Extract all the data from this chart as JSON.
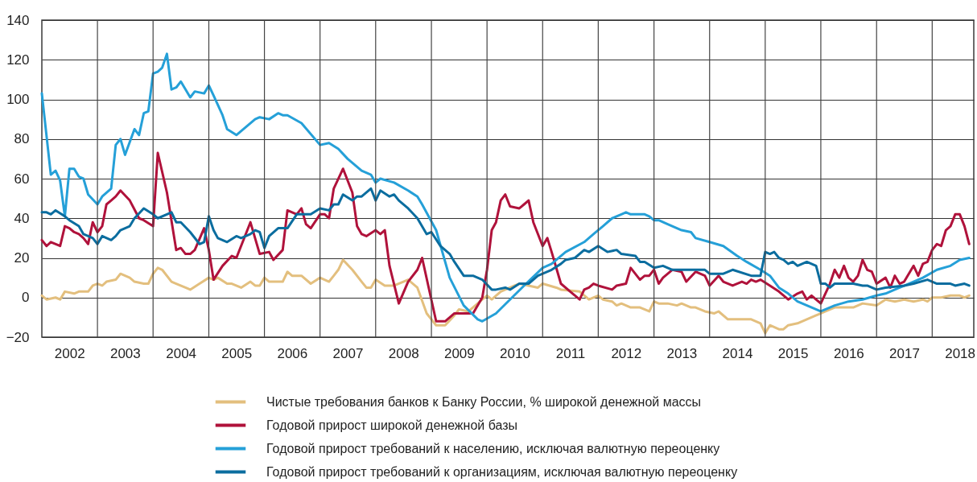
{
  "chart_data": {
    "type": "line",
    "xlim": [
      "2002-01",
      "2018-10"
    ],
    "ylim": [
      -20,
      140
    ],
    "xticks": [
      {
        "value": "2002-07",
        "label": "2002"
      },
      {
        "value": "2003-01",
        "label": null
      },
      {
        "value": "2003-07",
        "label": "2003"
      },
      {
        "value": "2004-01",
        "label": null
      },
      {
        "value": "2004-07",
        "label": "2004"
      },
      {
        "value": "2005-01",
        "label": null
      },
      {
        "value": "2005-07",
        "label": "2005"
      },
      {
        "value": "2006-01",
        "label": null
      },
      {
        "value": "2006-07",
        "label": "2006"
      },
      {
        "value": "2007-01",
        "label": null
      },
      {
        "value": "2007-07",
        "label": "2007"
      },
      {
        "value": "2008-01",
        "label": null
      },
      {
        "value": "2008-07",
        "label": "2008"
      },
      {
        "value": "2009-01",
        "label": null
      },
      {
        "value": "2009-07",
        "label": "2009"
      },
      {
        "value": "2010-01",
        "label": null
      },
      {
        "value": "2010-07",
        "label": "2010"
      },
      {
        "value": "2011-01",
        "label": null
      },
      {
        "value": "2011-07",
        "label": "2011"
      },
      {
        "value": "2012-01",
        "label": null
      },
      {
        "value": "2012-07",
        "label": "2012"
      },
      {
        "value": "2013-01",
        "label": null
      },
      {
        "value": "2013-07",
        "label": "2013"
      },
      {
        "value": "2014-01",
        "label": null
      },
      {
        "value": "2014-07",
        "label": "2014"
      },
      {
        "value": "2015-01",
        "label": null
      },
      {
        "value": "2015-07",
        "label": "2015"
      },
      {
        "value": "2016-01",
        "label": null
      },
      {
        "value": "2016-07",
        "label": "2016"
      },
      {
        "value": "2017-01",
        "label": null
      },
      {
        "value": "2017-07",
        "label": "2017"
      },
      {
        "value": "2018-01",
        "label": null
      },
      {
        "value": "2018-07",
        "label": "2018"
      }
    ],
    "yticks": [
      -20,
      0,
      20,
      40,
      60,
      80,
      100,
      120,
      140
    ],
    "grid": true,
    "legend": "bottom",
    "line_style": "solid",
    "series": [
      {
        "name": "Чистые требования банков к Банку России, % широкой денежной массы",
        "color": "#e3bf7e",
        "x": [
          "2002-01",
          "2002-02",
          "2002-04",
          "2002-05",
          "2002-06",
          "2002-08",
          "2002-09",
          "2002-11",
          "2002-12",
          "2003-01",
          "2003-02",
          "2003-03",
          "2003-05",
          "2003-06",
          "2003-08",
          "2003-09",
          "2003-11",
          "2003-12",
          "2004-01",
          "2004-02",
          "2004-03",
          "2004-05",
          "2004-06",
          "2004-08",
          "2004-09",
          "2004-11",
          "2005-01",
          "2005-02",
          "2005-03",
          "2005-05",
          "2005-06",
          "2005-08",
          "2005-10",
          "2005-11",
          "2005-12",
          "2006-01",
          "2006-02",
          "2006-05",
          "2006-06",
          "2006-07",
          "2006-09",
          "2006-11",
          "2007-01",
          "2007-03",
          "2007-04",
          "2007-05",
          "2007-06",
          "2007-08",
          "2007-10",
          "2007-11",
          "2007-12",
          "2008-01",
          "2008-03",
          "2008-05",
          "2008-07",
          "2008-08",
          "2008-10",
          "2008-12",
          "2009-02",
          "2009-04",
          "2009-06",
          "2009-07",
          "2009-09",
          "2009-10",
          "2009-12",
          "2010-01",
          "2010-02",
          "2010-04",
          "2010-07",
          "2010-08",
          "2010-10",
          "2010-12",
          "2011-01",
          "2011-04",
          "2011-05",
          "2011-09",
          "2011-11",
          "2012-01",
          "2012-02",
          "2012-04",
          "2012-05",
          "2012-06",
          "2012-08",
          "2012-10",
          "2012-12",
          "2013-01",
          "2013-02",
          "2013-04",
          "2013-06",
          "2013-07",
          "2013-09",
          "2013-10",
          "2013-12",
          "2014-02",
          "2014-03",
          "2014-05",
          "2014-07",
          "2014-09",
          "2014-10",
          "2014-12",
          "2015-01",
          "2015-02",
          "2015-04",
          "2015-05",
          "2015-06",
          "2015-08",
          "2015-10",
          "2015-12",
          "2016-02",
          "2016-04",
          "2016-06",
          "2016-08",
          "2016-10",
          "2017-01",
          "2017-03",
          "2017-05",
          "2017-07",
          "2017-09",
          "2017-11",
          "2017-12",
          "2018-01",
          "2018-03",
          "2018-05",
          "2018-07",
          "2018-08",
          "2018-09"
        ],
        "values": [
          1,
          -1,
          0,
          -1,
          3,
          2,
          3,
          3,
          6,
          7,
          6,
          8,
          9,
          12,
          10,
          8,
          7,
          7,
          12,
          15,
          14,
          8,
          7,
          5,
          4,
          7,
          10,
          9,
          10,
          7,
          7,
          5,
          8,
          6,
          6,
          10,
          8,
          8,
          13,
          11,
          11,
          7,
          10,
          8,
          11,
          14,
          19,
          14,
          8,
          5,
          5,
          9,
          6,
          6,
          8,
          9,
          5,
          -8,
          -14,
          -14,
          -9,
          -6,
          -7,
          -5,
          -1,
          1,
          -1,
          3,
          6,
          7,
          6,
          5,
          7,
          5,
          4,
          3,
          -1,
          1,
          -1,
          -2,
          -4,
          -3,
          -5,
          -5,
          -7,
          -2,
          -3,
          -3,
          -4,
          -3,
          -5,
          -5,
          -7,
          -8,
          -7,
          -11,
          -11,
          -11,
          -11,
          -13,
          -18,
          -14,
          -16,
          -16,
          -14,
          -13,
          -11,
          -9,
          -7,
          -5,
          -5,
          -5,
          -3,
          -4,
          -1,
          -2,
          -1,
          -2,
          -1,
          -2,
          0,
          0,
          1,
          1,
          0,
          1
        ]
      },
      {
        "name": "Годовой прирост широкой денежной базы",
        "color": "#b0123b",
        "x": [
          "2002-01",
          "2002-02",
          "2002-03",
          "2002-05",
          "2002-06",
          "2002-07",
          "2002-08",
          "2002-09",
          "2002-10",
          "2002-11",
          "2002-12",
          "2003-01",
          "2003-02",
          "2003-03",
          "2003-04",
          "2003-05",
          "2003-06",
          "2003-08",
          "2003-10",
          "2003-11",
          "2004-01",
          "2004-02",
          "2004-04",
          "2004-06",
          "2004-07",
          "2004-08",
          "2004-09",
          "2004-10",
          "2004-12",
          "2005-01",
          "2005-02",
          "2005-04",
          "2005-06",
          "2005-07",
          "2005-10",
          "2005-12",
          "2006-02",
          "2006-03",
          "2006-05",
          "2006-06",
          "2006-08",
          "2006-09",
          "2006-10",
          "2006-11",
          "2007-01",
          "2007-02",
          "2007-03",
          "2007-04",
          "2007-06",
          "2007-08",
          "2007-09",
          "2007-10",
          "2007-11",
          "2008-01",
          "2008-02",
          "2008-03",
          "2008-04",
          "2008-06",
          "2008-08",
          "2008-10",
          "2008-11",
          "2009-02",
          "2009-04",
          "2009-06",
          "2009-10",
          "2009-12",
          "2010-01",
          "2010-02",
          "2010-03",
          "2010-04",
          "2010-05",
          "2010-06",
          "2010-08",
          "2010-09",
          "2010-10",
          "2010-11",
          "2011-01",
          "2011-02",
          "2011-03",
          "2011-05",
          "2011-07",
          "2011-09",
          "2011-10",
          "2011-11",
          "2011-12",
          "2012-01",
          "2012-04",
          "2012-05",
          "2012-07",
          "2012-08",
          "2012-10",
          "2012-11",
          "2012-12",
          "2013-01",
          "2013-02",
          "2013-03",
          "2013-05",
          "2013-07",
          "2013-08",
          "2013-10",
          "2013-12",
          "2014-01",
          "2014-03",
          "2014-04",
          "2014-06",
          "2014-08",
          "2014-09",
          "2014-10",
          "2014-11",
          "2014-12",
          "2015-02",
          "2015-04",
          "2015-06",
          "2015-08",
          "2015-09",
          "2015-10",
          "2015-11",
          "2016-01",
          "2016-03",
          "2016-04",
          "2016-05",
          "2016-06",
          "2016-07",
          "2016-08",
          "2016-09",
          "2016-10",
          "2016-11",
          "2016-12",
          "2017-01",
          "2017-03",
          "2017-04",
          "2017-05",
          "2017-06",
          "2017-07",
          "2017-09",
          "2017-10",
          "2017-11",
          "2017-12",
          "2018-01",
          "2018-02",
          "2018-03",
          "2018-04",
          "2018-05",
          "2018-06",
          "2018-07",
          "2018-08",
          "2018-09"
        ],
        "values": [
          29,
          26,
          28,
          26,
          36,
          35,
          33,
          32,
          30,
          27,
          38,
          33,
          36,
          47,
          49,
          51,
          54,
          49,
          40,
          39,
          36,
          73,
          53,
          24,
          25,
          22,
          22,
          24,
          35,
          24,
          9,
          16,
          21,
          20,
          38,
          22,
          23,
          19,
          24,
          44,
          42,
          45,
          37,
          35,
          42,
          42,
          40,
          55,
          65,
          53,
          36,
          32,
          31,
          34,
          32,
          34,
          16,
          -3,
          8,
          14,
          20,
          -12,
          -12,
          -8,
          -8,
          0,
          14,
          34,
          38,
          49,
          52,
          46,
          45,
          47,
          49,
          38,
          26,
          30,
          23,
          7,
          3,
          -1,
          4,
          5,
          7,
          6,
          4,
          6,
          7,
          15,
          9,
          11,
          11,
          14,
          7,
          10,
          14,
          13,
          8,
          13,
          11,
          6,
          11,
          8,
          6,
          8,
          7,
          9,
          8,
          9,
          6,
          3,
          -1,
          2,
          3,
          -1,
          1,
          -3,
          7,
          14,
          10,
          16,
          10,
          8,
          11,
          19,
          14,
          13,
          7,
          10,
          5,
          11,
          7,
          8,
          16,
          11,
          17,
          18,
          24,
          27,
          26,
          34,
          36,
          42,
          42,
          36,
          27
        ]
      },
      {
        "name": "Годовой прирост требований к населению, исключая валютную переоценку",
        "color": "#25a0d8",
        "x": [
          "2002-01",
          "2002-03",
          "2002-04",
          "2002-05",
          "2002-06",
          "2002-07",
          "2002-08",
          "2002-09",
          "2002-10",
          "2002-11",
          "2003-01",
          "2003-02",
          "2003-04",
          "2003-05",
          "2003-06",
          "2003-07",
          "2003-09",
          "2003-10",
          "2003-11",
          "2003-12",
          "2004-01",
          "2004-02",
          "2004-03",
          "2004-04",
          "2004-05",
          "2004-06",
          "2004-07",
          "2004-09",
          "2004-10",
          "2004-12",
          "2005-01",
          "2005-02",
          "2005-04",
          "2005-05",
          "2005-07",
          "2005-08",
          "2005-11",
          "2005-12",
          "2006-02",
          "2006-04",
          "2006-05",
          "2006-06",
          "2006-09",
          "2007-01",
          "2007-03",
          "2007-05",
          "2007-07",
          "2007-10",
          "2007-12",
          "2008-01",
          "2008-02",
          "2008-05",
          "2008-08",
          "2008-10",
          "2008-11",
          "2009-02",
          "2009-05",
          "2009-08",
          "2009-11",
          "2009-12",
          "2010-03",
          "2010-06",
          "2010-09",
          "2011-01",
          "2011-03",
          "2011-06",
          "2011-10",
          "2011-12",
          "2012-02",
          "2012-04",
          "2012-06",
          "2012-07",
          "2012-08",
          "2012-11",
          "2012-12",
          "2013-01",
          "2013-02",
          "2013-04",
          "2013-07",
          "2013-09",
          "2013-10",
          "2014-01",
          "2014-04",
          "2014-07",
          "2014-09",
          "2014-12",
          "2015-02",
          "2015-04",
          "2015-06",
          "2015-08",
          "2016-01",
          "2016-04",
          "2016-07",
          "2016-10",
          "2017-01",
          "2017-03",
          "2017-05",
          "2017-08",
          "2017-11",
          "2018-02",
          "2018-05",
          "2018-07",
          "2018-09"
        ],
        "values": [
          103,
          62,
          64,
          59,
          41,
          65,
          65,
          61,
          60,
          52,
          47,
          51,
          55,
          77,
          80,
          72,
          85,
          82,
          93,
          94,
          113,
          114,
          116,
          123,
          105,
          106,
          109,
          101,
          104,
          103,
          107,
          102,
          92,
          85,
          82,
          84,
          90,
          91,
          90,
          93,
          92,
          92,
          88,
          77,
          78,
          75,
          70,
          64,
          62,
          58,
          60,
          58,
          54,
          51,
          47,
          34,
          10,
          -4,
          -11,
          -12,
          -8,
          -1,
          6,
          15,
          17,
          23,
          28,
          32,
          36,
          40,
          42,
          43,
          42,
          42,
          41,
          39,
          39,
          37,
          34,
          33,
          30,
          28,
          26,
          21,
          18,
          14,
          11,
          5,
          2,
          -2,
          -7,
          -4,
          -2,
          -1,
          1,
          2,
          4,
          7,
          10,
          14,
          16,
          19,
          20
        ]
      },
      {
        "name": "Годовой прирост требований к организациям, исключая валютную переоценку",
        "color": "#0b6d9f",
        "x": [
          "2002-01",
          "2002-02",
          "2002-03",
          "2002-04",
          "2002-06",
          "2002-07",
          "2002-09",
          "2002-10",
          "2002-11",
          "2002-12",
          "2003-01",
          "2003-02",
          "2003-04",
          "2003-05",
          "2003-06",
          "2003-08",
          "2003-09",
          "2003-11",
          "2004-01",
          "2004-02",
          "2004-04",
          "2004-05",
          "2004-06",
          "2004-07",
          "2004-09",
          "2004-11",
          "2004-12",
          "2005-01",
          "2005-02",
          "2005-03",
          "2005-05",
          "2005-07",
          "2005-08",
          "2005-10",
          "2005-11",
          "2005-12",
          "2006-01",
          "2006-02",
          "2006-04",
          "2006-06",
          "2006-08",
          "2006-11",
          "2007-01",
          "2007-03",
          "2007-04",
          "2007-05",
          "2007-06",
          "2007-08",
          "2007-09",
          "2007-10",
          "2007-12",
          "2008-01",
          "2008-02",
          "2008-04",
          "2008-05",
          "2008-06",
          "2008-08",
          "2008-10",
          "2008-12",
          "2009-01",
          "2009-03",
          "2009-05",
          "2009-06",
          "2009-08",
          "2009-10",
          "2009-12",
          "2010-02",
          "2010-03",
          "2010-05",
          "2010-06",
          "2010-08",
          "2010-10",
          "2010-12",
          "2011-03",
          "2011-05",
          "2011-06",
          "2011-08",
          "2011-10",
          "2011-11",
          "2012-01",
          "2012-03",
          "2012-05",
          "2012-06",
          "2012-09",
          "2012-10",
          "2012-11",
          "2013-01",
          "2013-03",
          "2013-05",
          "2013-10",
          "2013-12",
          "2014-01",
          "2014-04",
          "2014-06",
          "2014-10",
          "2014-12",
          "2015-01",
          "2015-02",
          "2015-03",
          "2015-04",
          "2015-05",
          "2015-06",
          "2015-07",
          "2015-08",
          "2015-10",
          "2015-12",
          "2016-01",
          "2016-02",
          "2016-03",
          "2016-04",
          "2016-08",
          "2016-10",
          "2016-11",
          "2017-01",
          "2017-03",
          "2017-07",
          "2017-09",
          "2017-12",
          "2018-02",
          "2018-05",
          "2018-06",
          "2018-08",
          "2018-09"
        ],
        "values": [
          43,
          43,
          42,
          44,
          41,
          39,
          36,
          32,
          31,
          30,
          27,
          31,
          29,
          31,
          34,
          36,
          40,
          45,
          42,
          40,
          42,
          43,
          38,
          38,
          33,
          27,
          28,
          41,
          34,
          30,
          28,
          31,
          30,
          32,
          34,
          33,
          25,
          31,
          35,
          35,
          42,
          42,
          45,
          44,
          47,
          47,
          52,
          49,
          51,
          51,
          55,
          49,
          54,
          51,
          52,
          49,
          45,
          40,
          32,
          33,
          26,
          22,
          18,
          11,
          11,
          9,
          4,
          4,
          5,
          4,
          7,
          7,
          11,
          14,
          17,
          19,
          20,
          24,
          23,
          26,
          23,
          24,
          22,
          21,
          18,
          18,
          15,
          16,
          14,
          14,
          14,
          12,
          12,
          14,
          11,
          11,
          23,
          22,
          23,
          20,
          19,
          17,
          18,
          16,
          18,
          16,
          7,
          7,
          5,
          7,
          7,
          6,
          6,
          4,
          5,
          6,
          7,
          9,
          7,
          7,
          6,
          7,
          6
        ]
      }
    ]
  }
}
